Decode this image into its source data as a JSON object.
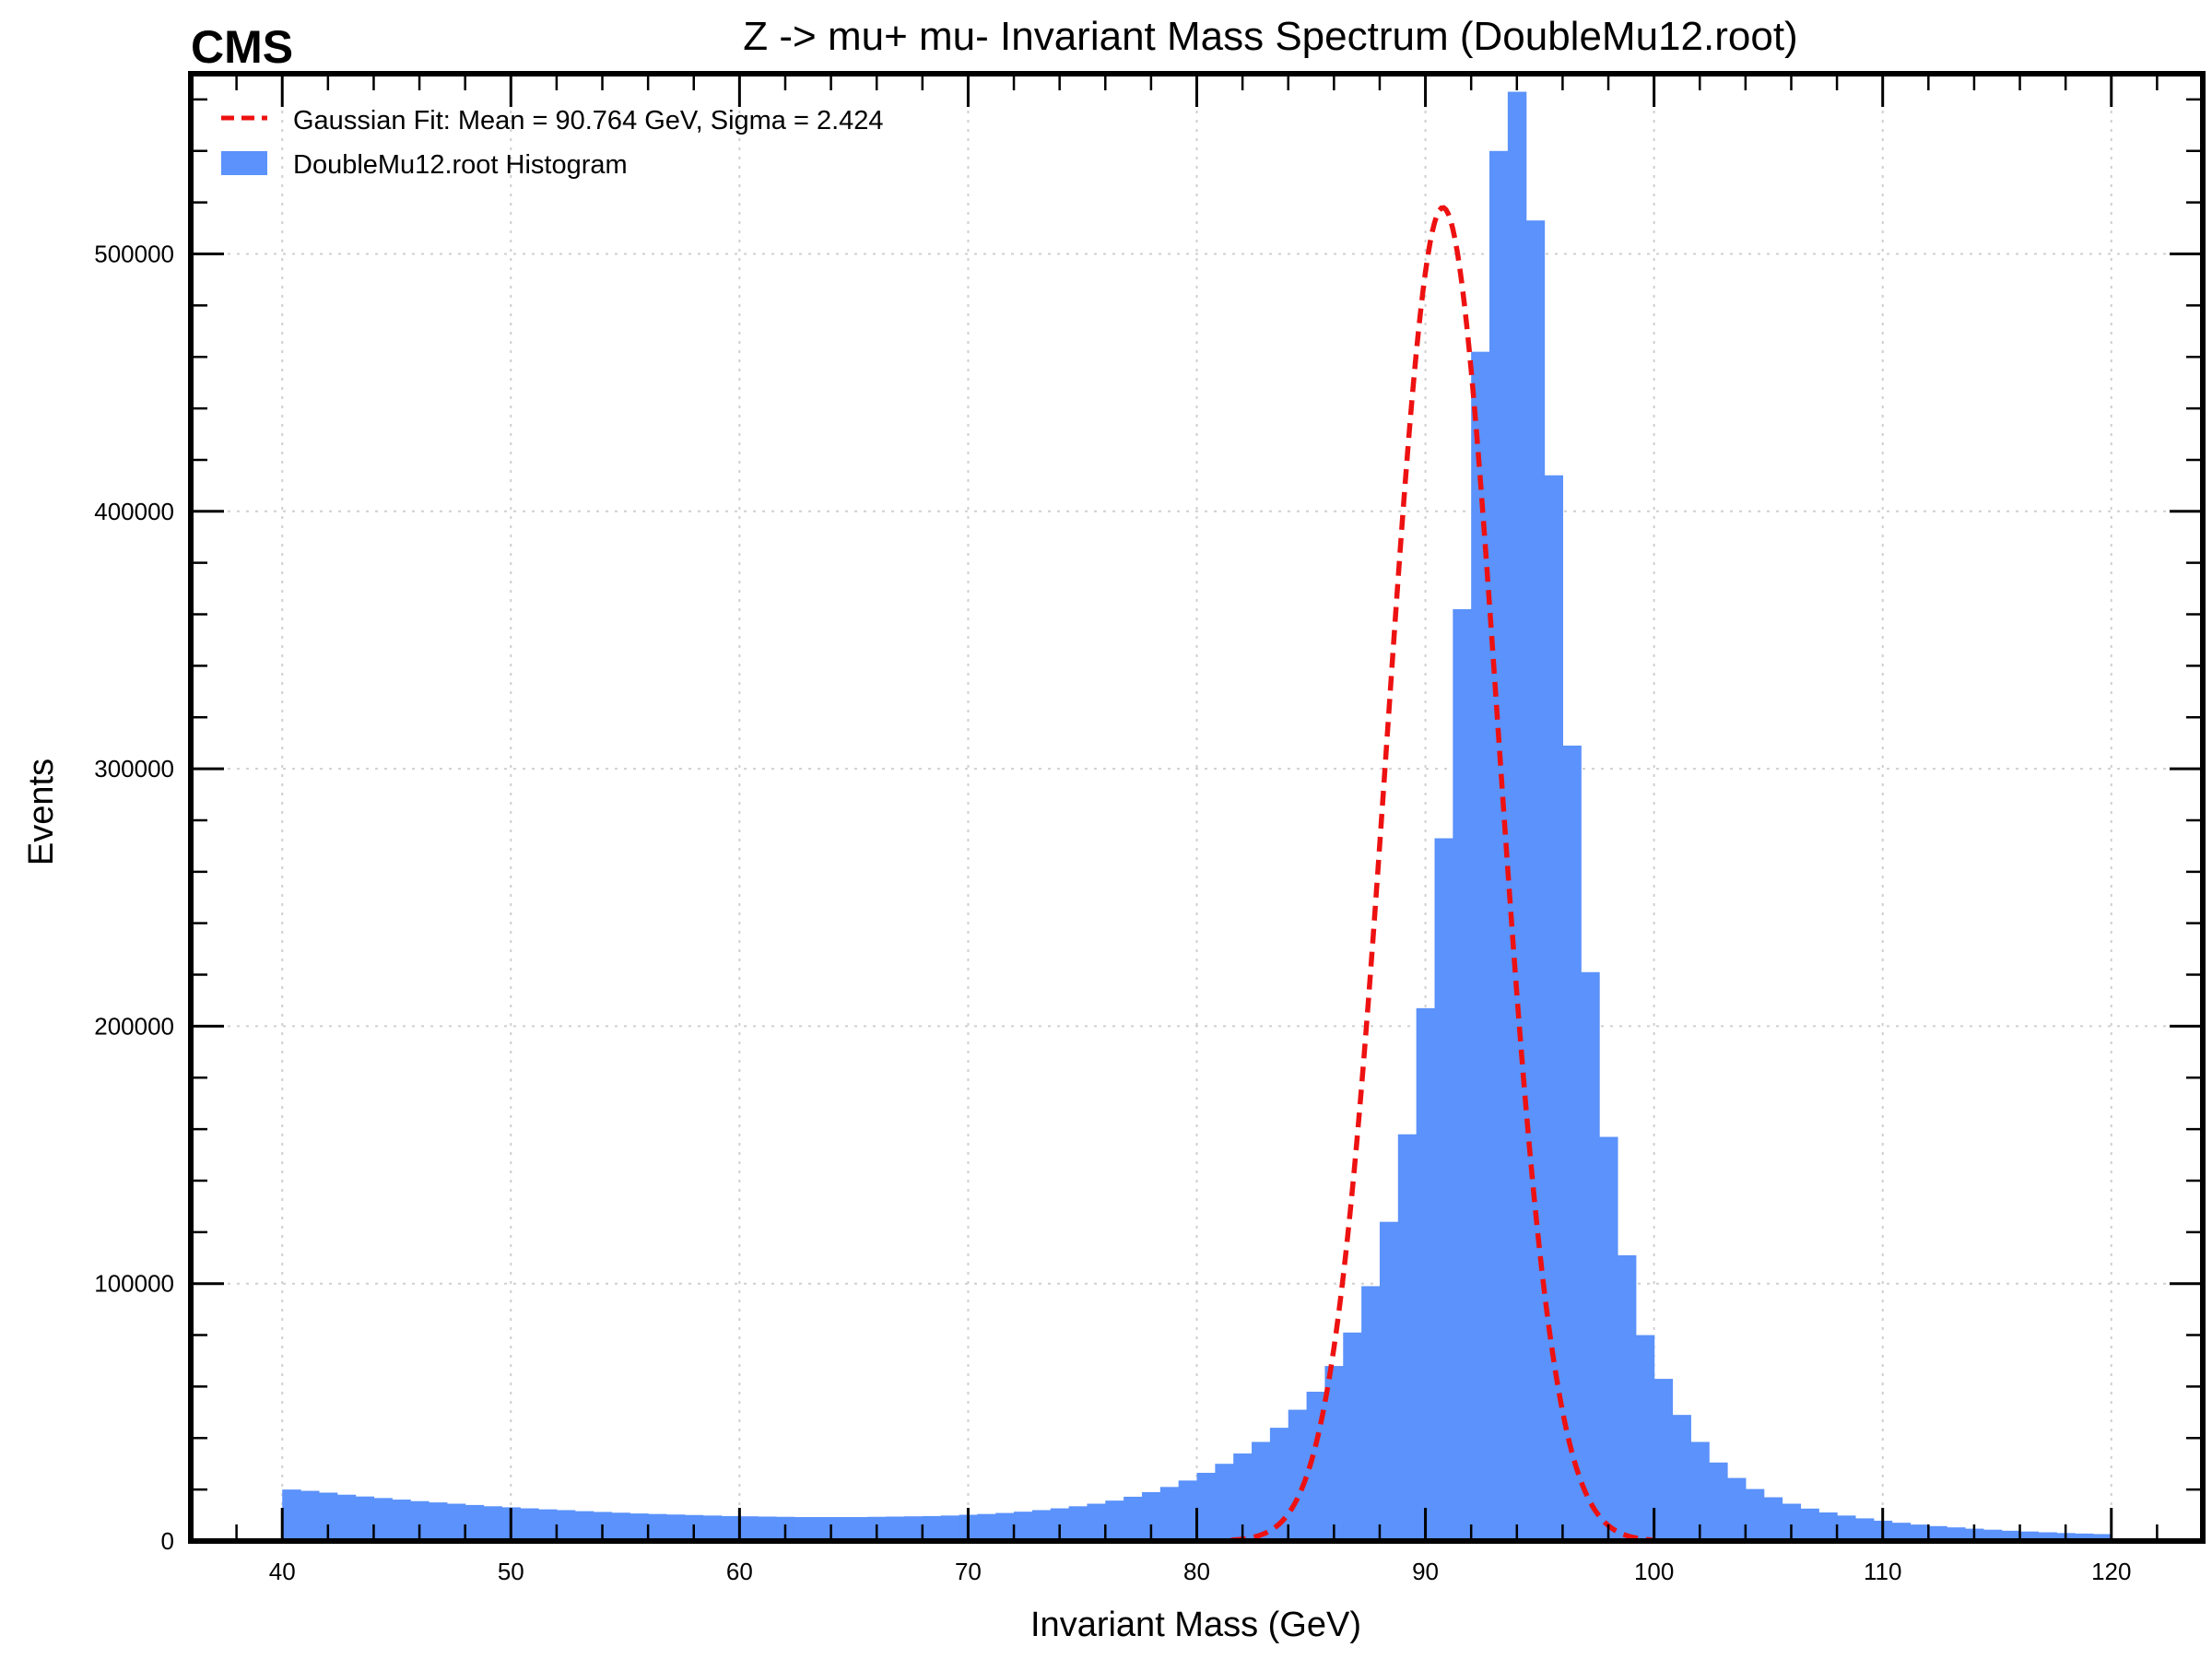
{
  "experiment_label": "CMS",
  "colors": {
    "histogram": "#5b92fb",
    "fit": "#ee1111",
    "grid": "#cfcfcf",
    "frame": "#000000"
  },
  "chart_data": {
    "type": "bar",
    "title": "Z -> mu+ mu- Invariant Mass Spectrum (DoubleMu12.root)",
    "xlabel": "Invariant Mass (GeV)",
    "ylabel": "Events",
    "xlim": [
      36,
      124
    ],
    "ylim": [
      0,
      570000
    ],
    "xticks": [
      40,
      50,
      60,
      70,
      80,
      90,
      100,
      110,
      120
    ],
    "xtick_labels": [
      "40",
      "50",
      "60",
      "70",
      "80",
      "90",
      "100",
      "110",
      "120"
    ],
    "yticks": [
      0,
      100000,
      200000,
      300000,
      400000,
      500000
    ],
    "ytick_labels": [
      "0",
      "100000",
      "200000",
      "300000",
      "400000",
      "500000"
    ],
    "grid": true,
    "legend_position": "top-left",
    "legend": {
      "fit_label": "Gaussian Fit: Mean = 90.764 GeV, Sigma = 2.424",
      "hist_label": "DoubleMu12.root Histogram"
    },
    "histogram": {
      "name": "DoubleMu12.root Histogram",
      "bin_low": 40,
      "bin_width": 0.8,
      "values": [
        20000,
        19500,
        18800,
        18000,
        17300,
        16700,
        16100,
        15500,
        15000,
        14500,
        14000,
        13500,
        13100,
        12700,
        12300,
        12000,
        11600,
        11300,
        11000,
        10700,
        10500,
        10300,
        10100,
        9900,
        9700,
        9600,
        9500,
        9400,
        9300,
        9300,
        9300,
        9300,
        9400,
        9500,
        9600,
        9700,
        9900,
        10200,
        10500,
        10900,
        11400,
        12000,
        12700,
        13500,
        14500,
        15700,
        17200,
        19000,
        21000,
        23500,
        26500,
        30000,
        34000,
        38500,
        44000,
        51000,
        58000,
        68000,
        81000,
        99000,
        124000,
        158000,
        207000,
        273000,
        362000,
        462000,
        540000,
        563000,
        513000,
        414000,
        309000,
        221000,
        157000,
        111000,
        80000,
        63000,
        49000,
        38500,
        30500,
        24500,
        20200,
        17000,
        14500,
        12600,
        11100,
        9900,
        8800,
        7900,
        7100,
        6400,
        5800,
        5300,
        4800,
        4400,
        4000,
        3700,
        3400,
        3100,
        2900,
        2700
      ]
    },
    "fit": {
      "name": "Gaussian Fit",
      "mean": 90.764,
      "sigma": 2.424,
      "amplitude": 518000,
      "x_range": [
        81.5,
        100
      ]
    }
  }
}
